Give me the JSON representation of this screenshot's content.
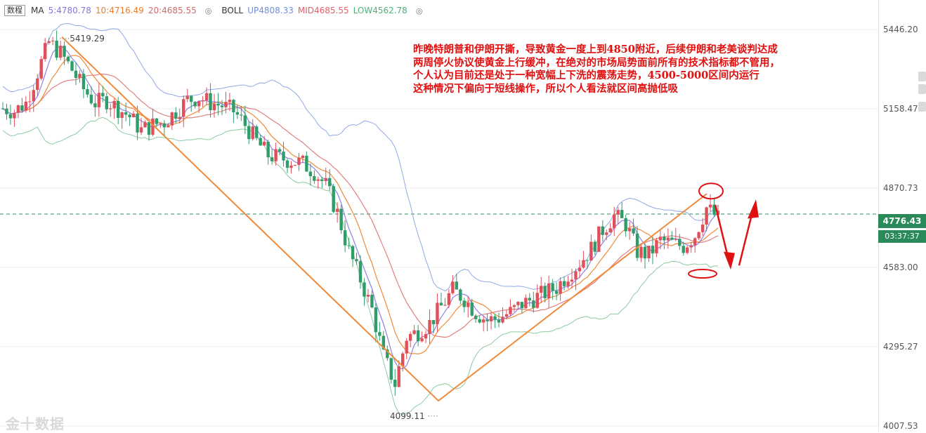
{
  "legend": {
    "tab": "数程",
    "ma_title": "MA",
    "ma5": "5:4780.78",
    "ma10": "10:4716.49",
    "ma20": "20:4685.55",
    "boll_title": "BOLL",
    "boll_up": "UP4808.33",
    "boll_mid": "MID4685.55",
    "boll_low": "LOW4562.78"
  },
  "axis": {
    "labels": [
      "5446.20",
      "5158.47",
      "4870.73",
      "4583.00",
      "4295.27",
      "4007.53"
    ],
    "current_price": "4776.43",
    "countdown": "03:37:37"
  },
  "extremes": {
    "high": "5419.29",
    "low": "4099.11"
  },
  "annotation": {
    "lines": [
      "昨晚特朗普和伊朗开撕，导致黄金一度上到4850附近，后续伊朗和老美谈判达成",
      "两周停火协议使黄金上行缓冲，在绝对的市场局势面前所有的技术指标都不管用，",
      "个人认为目前还是处于一种宽幅上下洗的震荡走势，4500-5000区间内运行",
      "这种情况下偏向于短线操作，所以个人看法就区间高抛低吸"
    ]
  },
  "watermark": "金十数据",
  "colors": {
    "up": "#e0505a",
    "down": "#2e9d6a",
    "ma5": "#9080e8",
    "ma10": "#f08a3a",
    "ma20": "#e08080",
    "boll_up": "#8fa8e8",
    "boll_low": "#8ec9a0",
    "trend": "#f08a3a",
    "note": "#e01010"
  },
  "chart_data": {
    "type": "candlestick",
    "instrument": "gold",
    "y_range": [
      4007.53,
      5446.2
    ],
    "y_ticks": [
      5446.2,
      5158.47,
      4870.73,
      4583.0,
      4295.27,
      4007.53
    ],
    "current_price": 4776.43,
    "high_marker": 5419.29,
    "low_marker": 4099.11,
    "indicators": {
      "MA5": 4780.78,
      "MA10": 4716.49,
      "MA20": 4685.55,
      "BOLL_UP": 4808.33,
      "BOLL_MID": 4685.55,
      "BOLL_LOW": 4562.78
    },
    "trendlines": [
      {
        "from": 5419.29,
        "to": 4099.11
      },
      {
        "from": 4099.11,
        "to": 4850
      }
    ],
    "close_path": [
      5160,
      5150,
      5180,
      5290,
      5400,
      5360,
      5300,
      5230,
      5180,
      5190,
      5160,
      5130,
      5080,
      5100,
      5110,
      5150,
      5190,
      5200,
      5180,
      5170,
      5150,
      5100,
      5040,
      4990,
      4980,
      4970,
      4960,
      4930,
      4880,
      4780,
      4640,
      4540,
      4430,
      4260,
      4160,
      4330,
      4350,
      4380,
      4440,
      4500,
      4470,
      4420,
      4390,
      4400,
      4420,
      4450,
      4470,
      4490,
      4510,
      4560,
      4600,
      4650,
      4720,
      4770,
      4740,
      4640,
      4630,
      4680,
      4670,
      4660,
      4700,
      4800,
      4760
    ],
    "point_count": 63
  }
}
